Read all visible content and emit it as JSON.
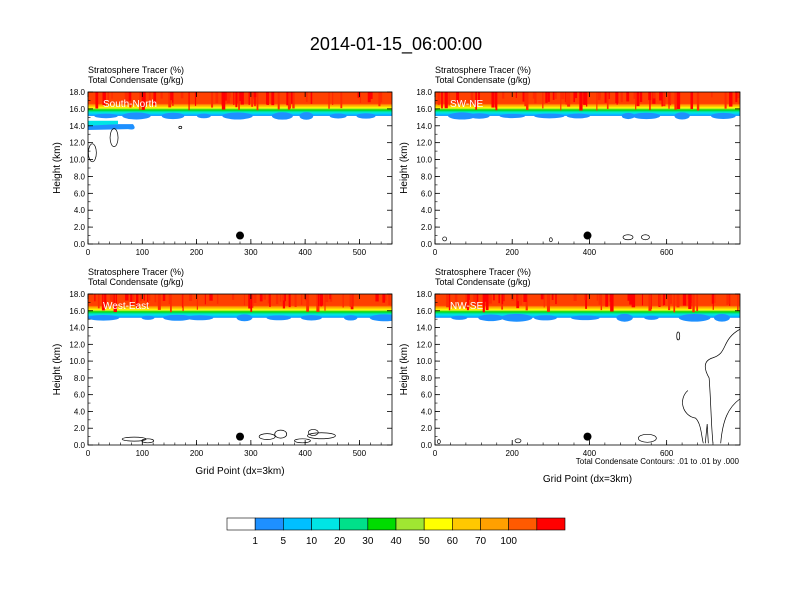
{
  "title": "2014-01-15_06:00:00",
  "footnote": "Total Condensate Contours: .01 to .01 by .000",
  "colorbar": {
    "labels": [
      "1",
      "5",
      "10",
      "20",
      "30",
      "40",
      "50",
      "60",
      "70",
      "100"
    ],
    "colors": [
      "#ffffff",
      "#1e90ff",
      "#00bfff",
      "#00e5e5",
      "#00e08a",
      "#00dc00",
      "#a0e632",
      "#ffff00",
      "#ffc800",
      "#ffa000",
      "#ff5a00",
      "#ff0000"
    ]
  },
  "chart_data": [
    {
      "type": "heatmap",
      "label": "South-North",
      "title_line1": "Stratosphere Tracer   (%)",
      "title_line2": "Total Condensate   (g/kg)",
      "ylabel": "Height (km)",
      "xlabel": "",
      "xlim": [
        0,
        560
      ],
      "ylim": [
        0,
        18
      ],
      "xticks": [
        "0",
        "100",
        "200",
        "300",
        "400",
        "500"
      ],
      "yticks": [
        "0.0",
        "2.0",
        "4.0",
        "6.0",
        "8.0",
        "10.0",
        "12.0",
        "14.0",
        "16.0",
        "18.0"
      ],
      "marker": {
        "x": 280,
        "y": 1.0
      }
    },
    {
      "type": "heatmap",
      "label": "SW-NE",
      "title_line1": "Stratosphere Tracer   (%)",
      "title_line2": "Total Condensate   (g/kg)",
      "ylabel": "Height (km)",
      "xlabel": "",
      "xlim": [
        0,
        790
      ],
      "ylim": [
        0,
        18
      ],
      "xticks": [
        "0",
        "200",
        "400",
        "600"
      ],
      "yticks": [
        "0.0",
        "2.0",
        "4.0",
        "6.0",
        "8.0",
        "10.0",
        "12.0",
        "14.0",
        "16.0",
        "18.0"
      ],
      "marker": {
        "x": 395,
        "y": 1.0
      }
    },
    {
      "type": "heatmap",
      "label": "West-East",
      "title_line1": "Stratosphere Tracer   (%)",
      "title_line2": "Total Condensate   (g/kg)",
      "ylabel": "Height (km)",
      "xlabel": "Grid Point (dx=3km)",
      "xlim": [
        0,
        560
      ],
      "ylim": [
        0,
        18
      ],
      "xticks": [
        "0",
        "100",
        "200",
        "300",
        "400",
        "500"
      ],
      "yticks": [
        "0.0",
        "2.0",
        "4.0",
        "6.0",
        "8.0",
        "10.0",
        "12.0",
        "14.0",
        "16.0",
        "18.0"
      ],
      "marker": {
        "x": 280,
        "y": 1.0
      }
    },
    {
      "type": "heatmap",
      "label": "NW-SE",
      "title_line1": "Stratosphere Tracer   (%)",
      "title_line2": "Total Condensate   (g/kg)",
      "ylabel": "Height (km)",
      "xlabel": "Grid Point (dx=3km)",
      "xlim": [
        0,
        790
      ],
      "ylim": [
        0,
        18
      ],
      "xticks": [
        "0",
        "200",
        "400",
        "600"
      ],
      "yticks": [
        "0.0",
        "2.0",
        "4.0",
        "6.0",
        "8.0",
        "10.0",
        "12.0",
        "14.0",
        "16.0",
        "18.0"
      ],
      "marker": {
        "x": 395,
        "y": 1.0
      }
    }
  ]
}
